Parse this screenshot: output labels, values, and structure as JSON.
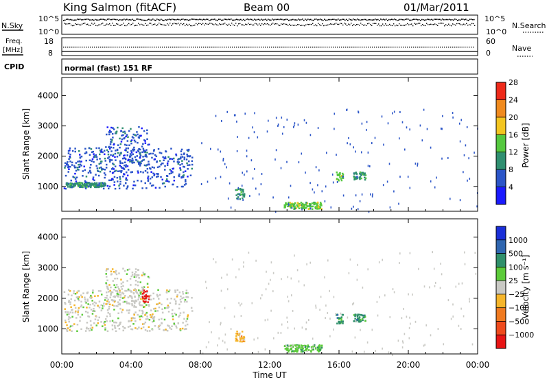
{
  "header": {
    "station": "King Salmon (fitACF)",
    "beam": "Beam 00",
    "date": "01/Mar/2011"
  },
  "params": {
    "nsky_label": "N.Sky",
    "nsearch_label": "N.Search",
    "nsky_ticks": [
      "10^5",
      "10^0"
    ],
    "nsearch_ticks": [
      "10^5",
      "10^0"
    ],
    "freq_label_1": "Freq.",
    "freq_label_2": "[MHz]",
    "freq_ticks": [
      "18",
      "8"
    ],
    "nave_label": "Nave",
    "nave_ticks": [
      "60",
      "0"
    ],
    "cpid_label": "CPID",
    "cpid_value": "normal (fast) 151 RF"
  },
  "chart_data": [
    {
      "type": "heatmap",
      "name": "power",
      "ylabel": "Slant Range [km]",
      "yticks": [
        "1000",
        "2000",
        "3000",
        "4000"
      ],
      "ylim": [
        180,
        4600
      ],
      "colorbar": {
        "label": "Power [dB]",
        "ticks": [
          "4",
          "8",
          "12",
          "16",
          "20",
          "24",
          "28"
        ],
        "colors": [
          "#1a1aff",
          "#2b55c8",
          "#2f8f70",
          "#55c83f",
          "#f3c520",
          "#f08a1e",
          "#ee2a1a"
        ]
      },
      "clusters": [
        {
          "t": [
            0.1,
            7.5
          ],
          "r": [
            950,
            2300
          ],
          "level": 1
        },
        {
          "t": [
            0.2,
            2.5
          ],
          "r": [
            1000,
            1150
          ],
          "level": 2
        },
        {
          "t": [
            2.5,
            5.0
          ],
          "r": [
            1750,
            3000
          ],
          "level": 1
        },
        {
          "t": [
            10.0,
            10.5
          ],
          "r": [
            600,
            950
          ],
          "level": 2
        },
        {
          "t": [
            12.8,
            15.0
          ],
          "r": [
            280,
            500
          ],
          "level": 3
        },
        {
          "t": [
            15.8,
            16.2
          ],
          "r": [
            1200,
            1500
          ],
          "level": 3
        },
        {
          "t": [
            16.8,
            17.5
          ],
          "r": [
            1250,
            1500
          ],
          "level": 2
        }
      ]
    },
    {
      "type": "heatmap",
      "name": "velocity",
      "ylabel": "Slant Range [km]",
      "yticks": [
        "1000",
        "2000",
        "3000",
        "4000"
      ],
      "ylim": [
        180,
        4600
      ],
      "xlabel": "Time UT",
      "xticks": [
        "00:00",
        "04:00",
        "08:00",
        "12:00",
        "16:00",
        "20:00",
        "00:00"
      ],
      "xlim": [
        0,
        24
      ],
      "colorbar": {
        "label": "Velocity [m s⁻¹]",
        "ticks": [
          "1000",
          "500",
          "100",
          "25",
          "−25",
          "−100",
          "−500",
          "−1000"
        ],
        "colors": [
          "#1a2fd8",
          "#2f66b0",
          "#2f8f6a",
          "#5ccb3a",
          "#c9c9c4",
          "#f5b52a",
          "#f07a20",
          "#ef4a1c",
          "#e81414"
        ]
      },
      "clusters": [
        {
          "t": [
            0.1,
            7.5
          ],
          "r": [
            950,
            2300
          ],
          "level": 4
        },
        {
          "t": [
            2.5,
            5.0
          ],
          "r": [
            1750,
            3000
          ],
          "level": 4
        },
        {
          "t": [
            4.6,
            5.0
          ],
          "r": [
            1900,
            2300
          ],
          "level": 8
        },
        {
          "t": [
            10.0,
            10.5
          ],
          "r": [
            600,
            950
          ],
          "level": 5
        },
        {
          "t": [
            12.8,
            15.0
          ],
          "r": [
            280,
            500
          ],
          "level": 3
        },
        {
          "t": [
            15.8,
            16.2
          ],
          "r": [
            1200,
            1500
          ],
          "level": 2
        },
        {
          "t": [
            16.8,
            17.5
          ],
          "r": [
            1250,
            1500
          ],
          "level": 2
        }
      ]
    }
  ]
}
